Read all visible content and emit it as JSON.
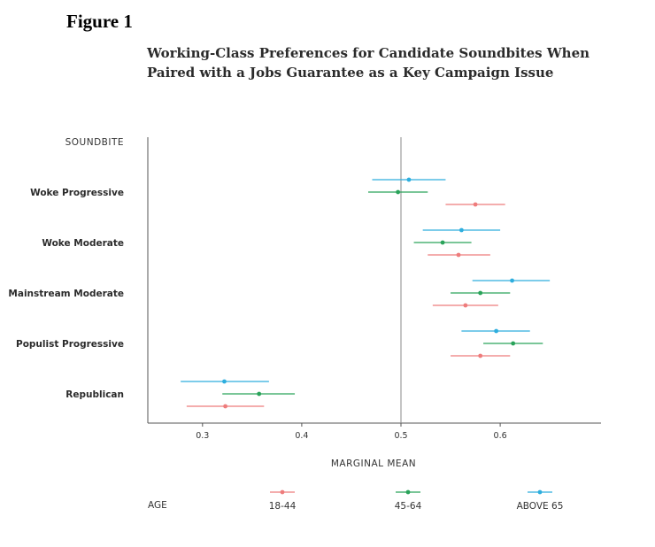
{
  "figure_label": "Figure 1",
  "title": "Working-Class Preferences for Candidate Soundbites When Paired with a Jobs Guarantee as a Key Campaign Issue",
  "colors": {
    "18-44": "#ee7c7c",
    "45-64": "#2aa35a",
    "ABOVE 65": "#2eaede",
    "reference_line": "#888888",
    "axis": "#555555"
  },
  "chart_data": {
    "type": "scatter",
    "subtype": "dot-and-whisker",
    "y_header": "SOUNDBITE",
    "xlabel": "MARGINAL MEAN",
    "xlim": [
      0.25,
      0.7
    ],
    "xticks": [
      "0.3",
      "0.4",
      "0.5",
      "0.6"
    ],
    "xtick_values": [
      0.3,
      0.4,
      0.5,
      0.6
    ],
    "reference_line": 0.5,
    "categories": [
      "Woke Progressive",
      "Woke Moderate",
      "Mainstream Moderate",
      "Populist Progressive",
      "Republican"
    ],
    "legend_title": "AGE",
    "series": [
      {
        "name": "ABOVE 65",
        "color": "#2eaede",
        "estimates": [
          0.508,
          0.561,
          0.612,
          0.596,
          0.322
        ],
        "ci_low": [
          0.471,
          0.522,
          0.572,
          0.561,
          0.278
        ],
        "ci_high": [
          0.545,
          0.6,
          0.65,
          0.63,
          0.367
        ]
      },
      {
        "name": "45-64",
        "color": "#2aa35a",
        "estimates": [
          0.497,
          0.542,
          0.58,
          0.613,
          0.357
        ],
        "ci_low": [
          0.467,
          0.513,
          0.55,
          0.583,
          0.32
        ],
        "ci_high": [
          0.527,
          0.571,
          0.61,
          0.643,
          0.393
        ]
      },
      {
        "name": "18-44",
        "color": "#ee7c7c",
        "estimates": [
          0.575,
          0.558,
          0.565,
          0.58,
          0.323
        ],
        "ci_low": [
          0.545,
          0.527,
          0.532,
          0.55,
          0.284
        ],
        "ci_high": [
          0.605,
          0.59,
          0.598,
          0.61,
          0.362
        ]
      }
    ]
  }
}
